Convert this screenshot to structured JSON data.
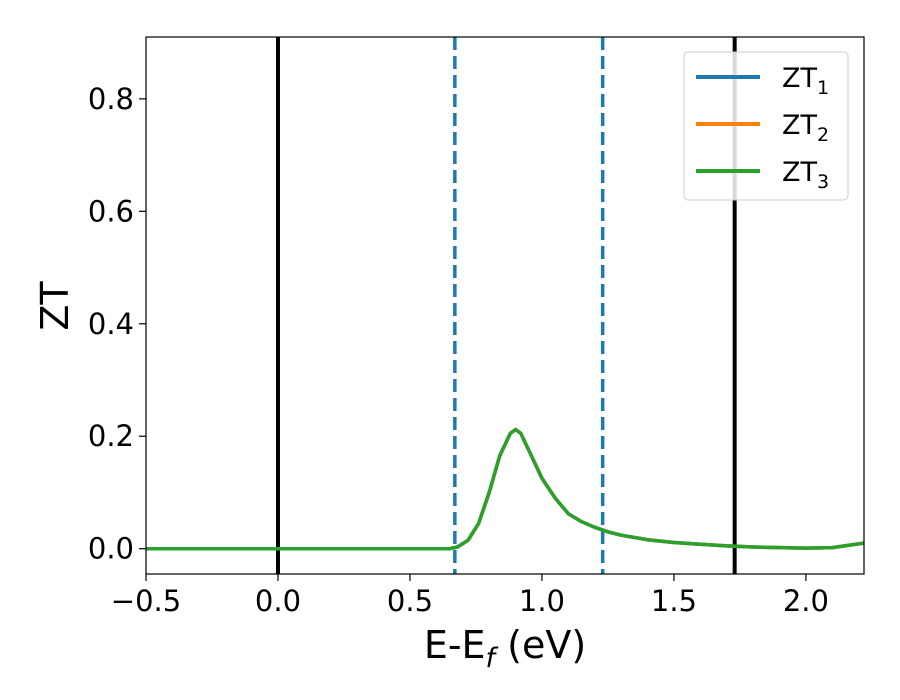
{
  "chart_data": {
    "type": "line",
    "xlabel": "E-E",
    "xlabel_sub": "f",
    "xlabel_unit": " (eV)",
    "ylabel": "ZT",
    "xlim": [
      -0.5,
      2.22
    ],
    "ylim": [
      -0.045,
      0.91
    ],
    "grid": false,
    "legend_position": "top-right",
    "x_ticks": [
      -0.5,
      0.0,
      0.5,
      1.0,
      1.5,
      2.0
    ],
    "x_tick_labels": [
      "−0.5",
      "0.0",
      "0.5",
      "1.0",
      "1.5",
      "2.0"
    ],
    "y_ticks": [
      0.0,
      0.2,
      0.4,
      0.6,
      0.8
    ],
    "y_tick_labels": [
      "0.0",
      "0.2",
      "0.4",
      "0.6",
      "0.8"
    ],
    "vertical_lines": [
      {
        "x": 0.0,
        "style": "solid",
        "color": "#000000"
      },
      {
        "x": 1.73,
        "style": "solid",
        "color": "#000000"
      },
      {
        "x": 0.67,
        "style": "dashed",
        "color": "#1f77b4"
      },
      {
        "x": 1.23,
        "style": "dashed",
        "color": "#1f77b4"
      }
    ],
    "x": [
      -0.5,
      0.0,
      0.5,
      0.65,
      0.68,
      0.72,
      0.76,
      0.8,
      0.84,
      0.88,
      0.9,
      0.92,
      0.95,
      1.0,
      1.05,
      1.1,
      1.15,
      1.2,
      1.25,
      1.3,
      1.4,
      1.5,
      1.6,
      1.7,
      1.8,
      1.9,
      2.0,
      2.1,
      2.22
    ],
    "series": [
      {
        "name": "ZT",
        "sub": "1",
        "color": "#1f77b4",
        "values": [
          0,
          0,
          0,
          0.0,
          0.003,
          0.015,
          0.045,
          0.1,
          0.165,
          0.205,
          0.212,
          0.205,
          0.175,
          0.125,
          0.09,
          0.062,
          0.048,
          0.038,
          0.03,
          0.024,
          0.016,
          0.011,
          0.008,
          0.005,
          0.003,
          0.002,
          0.001,
          0.002,
          0.01
        ]
      },
      {
        "name": "ZT",
        "sub": "2",
        "color": "#ff7f0e",
        "values": [
          0,
          0,
          0,
          0.0,
          0.003,
          0.015,
          0.045,
          0.1,
          0.165,
          0.205,
          0.212,
          0.205,
          0.175,
          0.125,
          0.09,
          0.062,
          0.048,
          0.038,
          0.03,
          0.024,
          0.016,
          0.011,
          0.008,
          0.005,
          0.003,
          0.002,
          0.001,
          0.002,
          0.01
        ]
      },
      {
        "name": "ZT",
        "sub": "3",
        "color": "#2ca02c",
        "values": [
          0,
          0,
          0,
          0.0,
          0.003,
          0.015,
          0.045,
          0.1,
          0.165,
          0.205,
          0.212,
          0.205,
          0.175,
          0.125,
          0.09,
          0.062,
          0.048,
          0.038,
          0.03,
          0.024,
          0.016,
          0.011,
          0.008,
          0.005,
          0.003,
          0.002,
          0.001,
          0.002,
          0.01
        ]
      }
    ]
  }
}
